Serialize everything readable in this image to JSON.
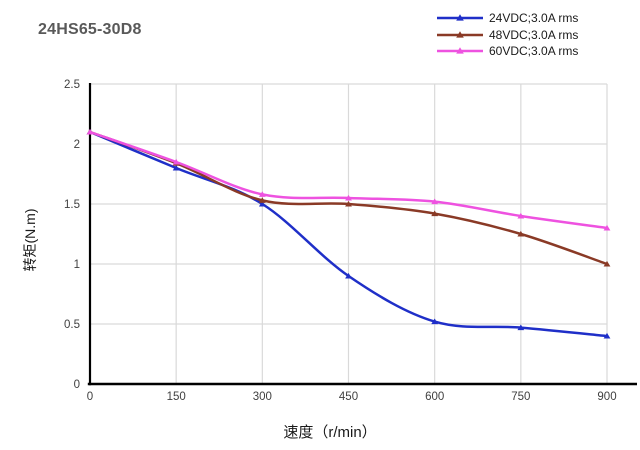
{
  "chart_data": {
    "type": "line",
    "title": "24HS65-30D8",
    "xlabel": "速度（r/min）",
    "ylabel": "转矩(N.m)",
    "x": [
      0,
      150,
      300,
      450,
      600,
      750,
      900
    ],
    "xlim": [
      0,
      900
    ],
    "ylim": [
      0,
      2.5
    ],
    "x_ticks": [
      0,
      150,
      300,
      450,
      600,
      750,
      900
    ],
    "y_ticks": [
      0,
      0.5,
      1,
      1.5,
      2,
      2.5
    ],
    "grid": true,
    "legend_position": "top-right",
    "marker": "triangle",
    "series": [
      {
        "name": "24VDC;3.0A rms",
        "color": "#1f2fc8",
        "values": [
          2.1,
          1.8,
          1.5,
          0.9,
          0.52,
          0.47,
          0.4
        ]
      },
      {
        "name": "48VDC;3.0A rms",
        "color": "#8a3a26",
        "values": [
          2.1,
          1.84,
          1.53,
          1.5,
          1.42,
          1.25,
          1.0
        ]
      },
      {
        "name": "60VDC;3.0A rms",
        "color": "#ee52e0",
        "values": [
          2.1,
          1.85,
          1.58,
          1.55,
          1.52,
          1.4,
          1.3
        ]
      }
    ],
    "style": {
      "grid_color": "#d9d9d9",
      "axis_color": "#000000",
      "tick_label_color": "#404040",
      "title_color": "#595959",
      "text_color": "#1a1a1a"
    }
  }
}
